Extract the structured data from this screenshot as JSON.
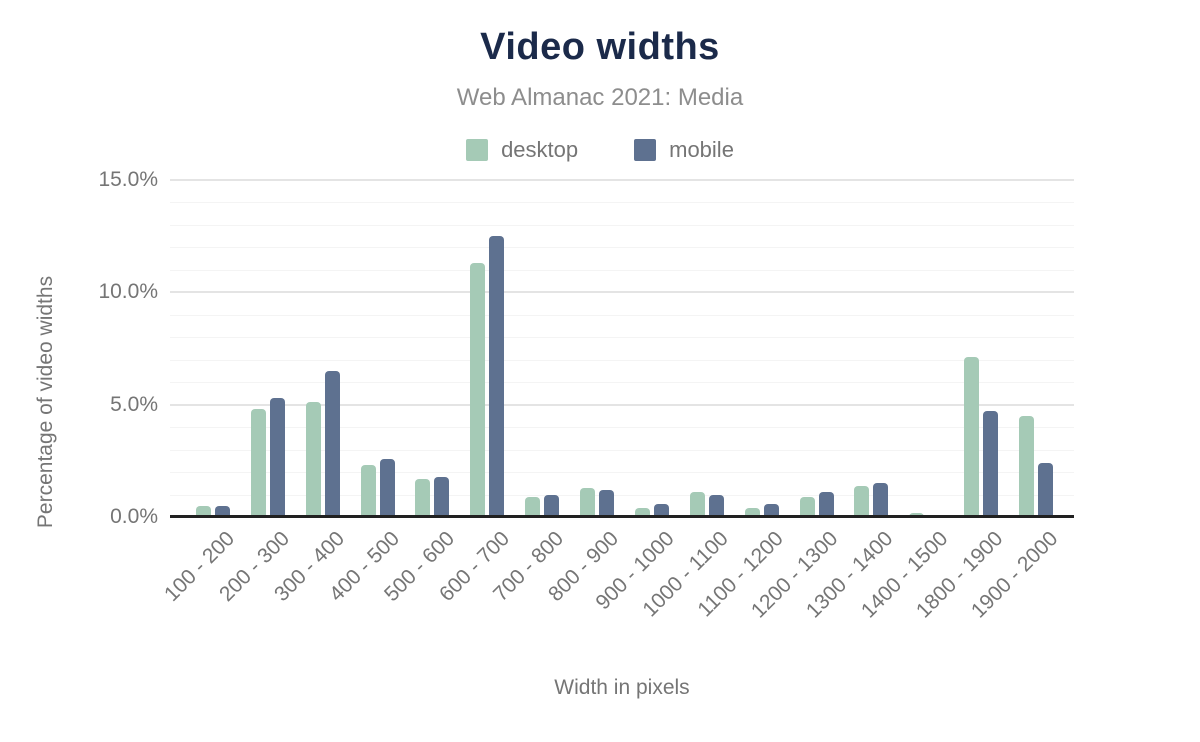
{
  "figure": {
    "title": "Video widths",
    "subtitle": "Web Almanac 2021: Media"
  },
  "chart_data": {
    "type": "bar",
    "title": "Video widths",
    "subtitle": "Web Almanac 2021: Media",
    "xlabel": "Width in pixels",
    "ylabel": "Percentage of video widths",
    "categories": [
      "100 - 200",
      "200 - 300",
      "300 - 400",
      "400 - 500",
      "500 - 600",
      "600 - 700",
      "700 - 800",
      "800 - 900",
      "900 - 1000",
      "1000 - 1100",
      "1100 - 1200",
      "1200 - 1300",
      "1300 - 1400",
      "1400 - 1500",
      "1800 - 1900",
      "1900 - 2000"
    ],
    "series": [
      {
        "name": "desktop",
        "color": "#a5cab6",
        "values": [
          0.5,
          4.8,
          5.1,
          2.3,
          1.7,
          11.3,
          0.9,
          1.3,
          0.4,
          1.1,
          0.4,
          0.9,
          1.4,
          0.2,
          7.1,
          4.5
        ]
      },
      {
        "name": "mobile",
        "color": "#5e7190",
        "values": [
          0.5,
          5.3,
          6.5,
          2.6,
          1.8,
          12.5,
          1.0,
          1.2,
          0.6,
          1.0,
          0.6,
          1.1,
          1.5,
          0.0,
          4.7,
          2.4
        ]
      }
    ],
    "ylim": [
      0,
      15
    ],
    "yticks": [
      {
        "value": 0,
        "label": "0.0%"
      },
      {
        "value": 5,
        "label": "5.0%"
      },
      {
        "value": 10,
        "label": "10.0%"
      },
      {
        "value": 15,
        "label": "15.0%"
      }
    ],
    "minor_grid_step_percent": 1,
    "grid": true,
    "legend_position": "top",
    "palette": {
      "title": "#1b2a4a",
      "subtitle": "#8d8d8d",
      "axis_text": "#757575",
      "axis_line": "#212121",
      "grid_major": "#e4e4e4",
      "grid_minor": "#f4f4f4"
    }
  }
}
